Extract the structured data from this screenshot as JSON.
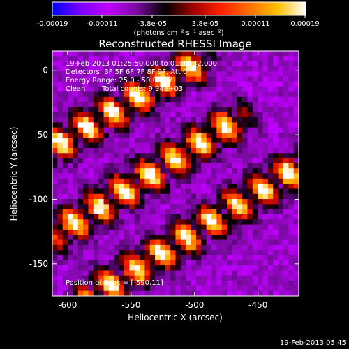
{
  "colorbar": {
    "tick_labels": [
      "-0.00019",
      "-0.00011",
      "-3.8e-05",
      "3.8e-05",
      "0.00011",
      "0.00019"
    ],
    "unit_label": "(photons cm⁻² s⁻¹ asec⁻²)",
    "range": [
      -0.00019,
      0.00019
    ],
    "colors": [
      "#0000ff",
      "#7a00ff",
      "#c000ff",
      "#7a0aa0",
      "#000000",
      "#a00000",
      "#ff2000",
      "#ff7000",
      "#ffc000",
      "#ffffff"
    ]
  },
  "chart_data": {
    "type": "heatmap",
    "title": "Reconstructed RHESSI Image",
    "xlabel": "Heliocentric X (arcsec)",
    "ylabel": "Heliocentric Y (arcsec)",
    "xlim": [
      -612,
      -418
    ],
    "ylim": [
      -175,
      15
    ],
    "x_ticks": [
      -600,
      -550,
      -500,
      -450
    ],
    "y_ticks": [
      0,
      -50,
      -100,
      -150
    ],
    "x_tick_labels": [
      "-600",
      "-550",
      "-500",
      "-450"
    ],
    "y_tick_labels": [
      "0",
      "-50",
      "-100",
      "-150"
    ],
    "grid": false,
    "colormap": "rhessi blue-purple-black-red-yellow-white",
    "annotations": [
      "19-Feb-2013 01:25:50.000 to 01:31:32.000",
      "Detectors: 3F 5F 6F 7F 8F 9F, Att 0",
      "Energy Range: 25.0 - 50.0 keV",
      "Clean",
      "Total counts: 9.94E+03"
    ],
    "peak_label": "Position of Peak = [-590,11]",
    "peak_position": [
      -590,
      11
    ],
    "bright_bands": [
      {
        "from": [
          -612,
          -60
        ],
        "to": [
          -500,
          5
        ]
      },
      {
        "from": [
          -605,
          -125
        ],
        "to": [
          -470,
          -40
        ]
      },
      {
        "from": [
          -580,
          -175
        ],
        "to": [
          -418,
          -75
        ]
      }
    ]
  },
  "footer": {
    "timestamp": "19-Feb-2013 05:45"
  }
}
